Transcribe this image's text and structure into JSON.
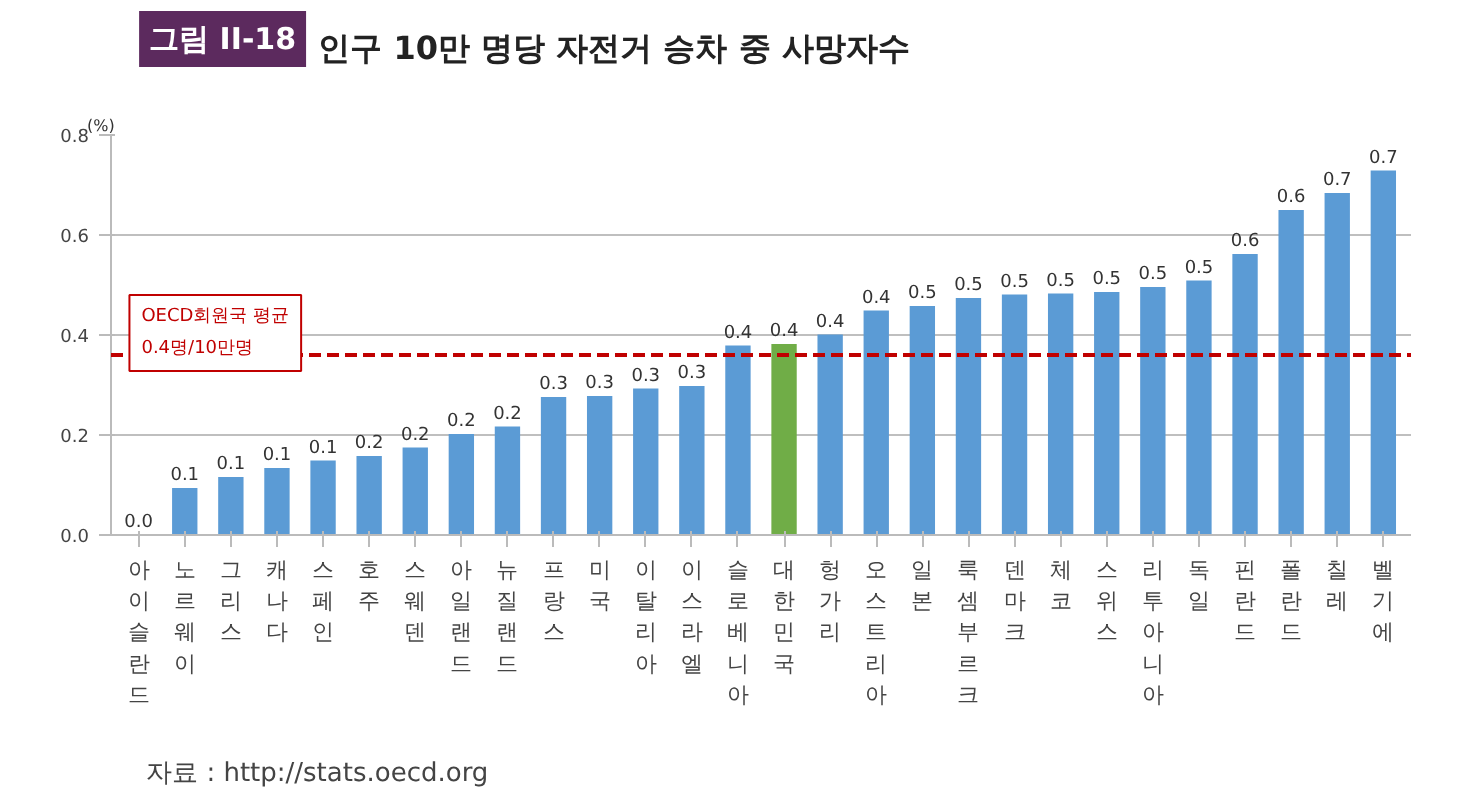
{
  "chart_data": {
    "type": "bar",
    "title": "인구 10만 명당 자전거 승차 중 사망자수",
    "ylabel": "(%)",
    "annotations": [
      "그림 II-18",
      "자료 : http://stats.oecd.org"
    ],
    "categories": [
      "아이슬란드",
      "노르웨이",
      "그리스",
      "캐나다",
      "스페인",
      "호주",
      "스웨덴",
      "아일랜드",
      "뉴질랜드",
      "프랑스",
      "미국",
      "이탈리아",
      "이스라엘",
      "슬로베니아",
      "대한민국",
      "헝가리",
      "오스트리아",
      "일본",
      "룩셈부르크",
      "덴마크",
      "체코",
      "스위스",
      "리투아니아",
      "독일",
      "핀란드",
      "폴란드",
      "칠레",
      "벨기에"
    ],
    "values": [
      0.0,
      0.094,
      0.116,
      0.134,
      0.149,
      0.158,
      0.175,
      0.202,
      0.217,
      0.276,
      0.278,
      0.293,
      0.298,
      0.379,
      0.382,
      0.401,
      0.449,
      0.458,
      0.474,
      0.481,
      0.483,
      0.486,
      0.496,
      0.509,
      0.562,
      0.65,
      0.684,
      0.729
    ],
    "value_labels": [
      "0.0",
      "0.1",
      "0.1",
      "0.1",
      "0.1",
      "0.2",
      "0.2",
      "0.2",
      "0.2",
      "0.3",
      "0.3",
      "0.3",
      "0.3",
      "0.4",
      "0.4",
      "0.4",
      "0.4",
      "0.5",
      "0.5",
      "0.5",
      "0.5",
      "0.5",
      "0.5",
      "0.5",
      "0.6",
      "0.6",
      "0.7",
      "0.7"
    ],
    "colors": [
      "#5b9bd5",
      "#5b9bd5",
      "#5b9bd5",
      "#5b9bd5",
      "#5b9bd5",
      "#5b9bd5",
      "#5b9bd5",
      "#5b9bd5",
      "#5b9bd5",
      "#5b9bd5",
      "#5b9bd5",
      "#5b9bd5",
      "#5b9bd5",
      "#5b9bd5",
      "#70ad47",
      "#5b9bd5",
      "#5b9bd5",
      "#5b9bd5",
      "#5b9bd5",
      "#5b9bd5",
      "#5b9bd5",
      "#5b9bd5",
      "#5b9bd5",
      "#5b9bd5",
      "#5b9bd5",
      "#5b9bd5",
      "#5b9bd5",
      "#5b9bd5"
    ],
    "ylim": [
      0,
      0.8
    ],
    "yticks": [
      "0.0",
      0.2,
      0.4,
      0.6,
      0.8
    ],
    "ref_lines": [
      {
        "axis": "y",
        "value": 0.36,
        "label": "OECD회원국 평균\n0.4명/10만명",
        "color": "#c00000",
        "line_style": "dashed"
      }
    ],
    "grid": "y"
  }
}
